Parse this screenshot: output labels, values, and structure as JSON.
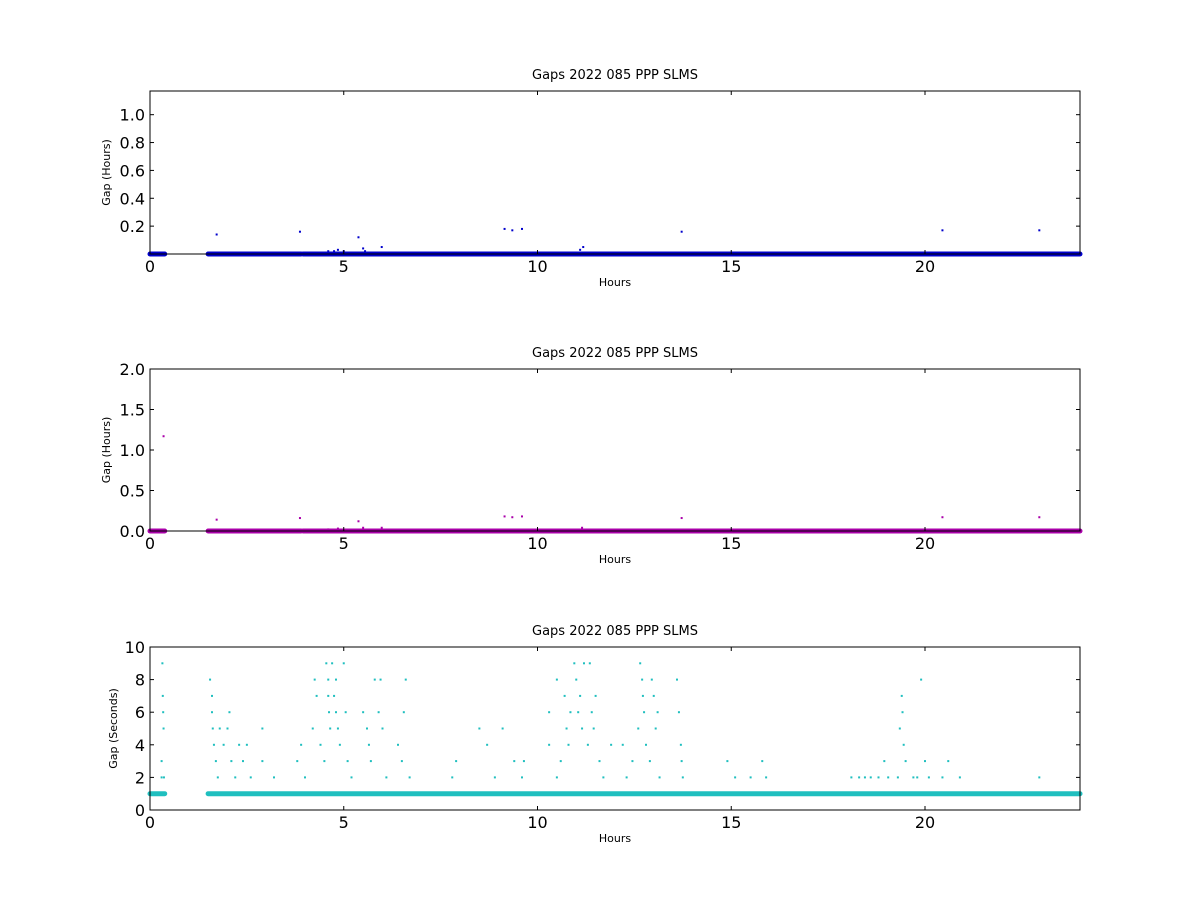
{
  "chart_data": [
    {
      "type": "scatter",
      "title": "Gaps 2022 085 PPP  SLMS",
      "xlabel": "Hours",
      "ylabel": "Gap (Hours)",
      "xlim": [
        0,
        24
      ],
      "ylim": [
        0,
        1.17
      ],
      "xticks": [
        0,
        5,
        10,
        15,
        20
      ],
      "yticks": [
        0.2,
        0.4,
        0.6,
        0.8,
        1.0
      ],
      "xtick_labels": [
        "0",
        "5",
        "10",
        "15",
        "20"
      ],
      "ytick_labels": [
        "0.2",
        "0.4",
        "0.6",
        "0.8",
        "1.0"
      ],
      "color": "#0000cc",
      "grid": false,
      "baseline": {
        "value": 0.0,
        "segments": [
          [
            0.0,
            0.38
          ],
          [
            1.5,
            3.9
          ],
          [
            3.95,
            24.0
          ]
        ]
      },
      "points": [
        {
          "x": 1.72,
          "y": 0.14
        },
        {
          "x": 3.87,
          "y": 0.16
        },
        {
          "x": 4.6,
          "y": 0.02
        },
        {
          "x": 4.75,
          "y": 0.02
        },
        {
          "x": 4.85,
          "y": 0.03
        },
        {
          "x": 5.0,
          "y": 0.02
        },
        {
          "x": 5.38,
          "y": 0.12
        },
        {
          "x": 5.5,
          "y": 0.04
        },
        {
          "x": 5.55,
          "y": 0.02
        },
        {
          "x": 5.98,
          "y": 0.05
        },
        {
          "x": 9.15,
          "y": 0.18
        },
        {
          "x": 9.35,
          "y": 0.17
        },
        {
          "x": 9.6,
          "y": 0.18
        },
        {
          "x": 11.1,
          "y": 0.03
        },
        {
          "x": 11.18,
          "y": 0.05
        },
        {
          "x": 13.72,
          "y": 0.16
        },
        {
          "x": 20.45,
          "y": 0.17
        },
        {
          "x": 22.95,
          "y": 0.17
        }
      ]
    },
    {
      "type": "scatter",
      "title": "Gaps 2022 085 PPP  SLMS",
      "xlabel": "Hours",
      "ylabel": "Gap (Hours)",
      "xlim": [
        0,
        24
      ],
      "ylim": [
        0,
        2.0
      ],
      "xticks": [
        0,
        5,
        10,
        15,
        20
      ],
      "yticks": [
        0.0,
        0.5,
        1.0,
        1.5,
        2.0
      ],
      "xtick_labels": [
        "0",
        "5",
        "10",
        "15",
        "20"
      ],
      "ytick_labels": [
        "0.0",
        "0.5",
        "1.0",
        "1.5",
        "2.0"
      ],
      "color": "#aa00aa",
      "grid": false,
      "baseline": {
        "value": 0.0,
        "segments": [
          [
            0.0,
            0.38
          ],
          [
            1.5,
            3.9
          ],
          [
            3.95,
            24.0
          ]
        ]
      },
      "points": [
        {
          "x": 0.35,
          "y": 1.17
        },
        {
          "x": 1.72,
          "y": 0.14
        },
        {
          "x": 3.87,
          "y": 0.16
        },
        {
          "x": 4.6,
          "y": 0.02
        },
        {
          "x": 4.85,
          "y": 0.03
        },
        {
          "x": 5.38,
          "y": 0.12
        },
        {
          "x": 5.5,
          "y": 0.04
        },
        {
          "x": 5.98,
          "y": 0.04
        },
        {
          "x": 9.15,
          "y": 0.18
        },
        {
          "x": 9.35,
          "y": 0.17
        },
        {
          "x": 9.6,
          "y": 0.18
        },
        {
          "x": 11.15,
          "y": 0.04
        },
        {
          "x": 13.72,
          "y": 0.16
        },
        {
          "x": 20.45,
          "y": 0.17
        },
        {
          "x": 22.95,
          "y": 0.17
        }
      ]
    },
    {
      "type": "scatter",
      "title": "Gaps 2022 085 PPP  SLMS",
      "xlabel": "Hours",
      "ylabel": "Gap (Seconds)",
      "xlim": [
        0,
        24
      ],
      "ylim": [
        0,
        10
      ],
      "xticks": [
        0,
        5,
        10,
        15,
        20
      ],
      "yticks": [
        0,
        2,
        4,
        6,
        8,
        10
      ],
      "xtick_labels": [
        "0",
        "5",
        "10",
        "15",
        "20"
      ],
      "ytick_labels": [
        "0",
        "2",
        "4",
        "6",
        "8",
        "10"
      ],
      "color": "#1fbfbf",
      "grid": false,
      "baseline": {
        "value": 1,
        "segments": [
          [
            0.0,
            0.38
          ],
          [
            1.5,
            24.0
          ]
        ]
      },
      "points": [
        {
          "x": 0.3,
          "y": 2
        },
        {
          "x": 0.3,
          "y": 3
        },
        {
          "x": 0.32,
          "y": 9
        },
        {
          "x": 0.33,
          "y": 7
        },
        {
          "x": 0.34,
          "y": 6
        },
        {
          "x": 0.35,
          "y": 5
        },
        {
          "x": 0.36,
          "y": 2
        },
        {
          "x": 1.55,
          "y": 8
        },
        {
          "x": 1.6,
          "y": 7
        },
        {
          "x": 1.6,
          "y": 6
        },
        {
          "x": 1.62,
          "y": 5
        },
        {
          "x": 1.65,
          "y": 4
        },
        {
          "x": 1.7,
          "y": 3
        },
        {
          "x": 1.75,
          "y": 2
        },
        {
          "x": 1.8,
          "y": 5
        },
        {
          "x": 1.9,
          "y": 4
        },
        {
          "x": 2.0,
          "y": 5
        },
        {
          "x": 2.05,
          "y": 6
        },
        {
          "x": 2.1,
          "y": 3
        },
        {
          "x": 2.2,
          "y": 2
        },
        {
          "x": 2.3,
          "y": 4
        },
        {
          "x": 2.4,
          "y": 3
        },
        {
          "x": 2.5,
          "y": 4
        },
        {
          "x": 2.6,
          "y": 2
        },
        {
          "x": 2.9,
          "y": 5
        },
        {
          "x": 2.9,
          "y": 3
        },
        {
          "x": 3.2,
          "y": 2
        },
        {
          "x": 3.8,
          "y": 3
        },
        {
          "x": 3.9,
          "y": 4
        },
        {
          "x": 4.0,
          "y": 2
        },
        {
          "x": 4.2,
          "y": 5
        },
        {
          "x": 4.25,
          "y": 8
        },
        {
          "x": 4.3,
          "y": 7
        },
        {
          "x": 4.4,
          "y": 4
        },
        {
          "x": 4.5,
          "y": 3
        },
        {
          "x": 4.55,
          "y": 9
        },
        {
          "x": 4.6,
          "y": 8
        },
        {
          "x": 4.6,
          "y": 7
        },
        {
          "x": 4.62,
          "y": 6
        },
        {
          "x": 4.65,
          "y": 5
        },
        {
          "x": 4.7,
          "y": 9
        },
        {
          "x": 4.75,
          "y": 7
        },
        {
          "x": 4.8,
          "y": 8
        },
        {
          "x": 4.8,
          "y": 6
        },
        {
          "x": 4.85,
          "y": 5
        },
        {
          "x": 4.9,
          "y": 4
        },
        {
          "x": 5.0,
          "y": 9
        },
        {
          "x": 5.05,
          "y": 6
        },
        {
          "x": 5.1,
          "y": 3
        },
        {
          "x": 5.2,
          "y": 2
        },
        {
          "x": 5.5,
          "y": 6
        },
        {
          "x": 5.6,
          "y": 5
        },
        {
          "x": 5.65,
          "y": 4
        },
        {
          "x": 5.7,
          "y": 3
        },
        {
          "x": 5.8,
          "y": 8
        },
        {
          "x": 5.9,
          "y": 6
        },
        {
          "x": 5.95,
          "y": 8
        },
        {
          "x": 6.0,
          "y": 5
        },
        {
          "x": 6.1,
          "y": 2
        },
        {
          "x": 6.4,
          "y": 4
        },
        {
          "x": 6.5,
          "y": 3
        },
        {
          "x": 6.55,
          "y": 6
        },
        {
          "x": 6.6,
          "y": 8
        },
        {
          "x": 6.7,
          "y": 2
        },
        {
          "x": 7.8,
          "y": 2
        },
        {
          "x": 7.9,
          "y": 3
        },
        {
          "x": 8.5,
          "y": 5
        },
        {
          "x": 8.7,
          "y": 4
        },
        {
          "x": 8.9,
          "y": 2
        },
        {
          "x": 9.1,
          "y": 5
        },
        {
          "x": 9.4,
          "y": 3
        },
        {
          "x": 9.6,
          "y": 2
        },
        {
          "x": 9.65,
          "y": 3
        },
        {
          "x": 10.3,
          "y": 6
        },
        {
          "x": 10.3,
          "y": 4
        },
        {
          "x": 10.5,
          "y": 2
        },
        {
          "x": 10.5,
          "y": 8
        },
        {
          "x": 10.6,
          "y": 3
        },
        {
          "x": 10.7,
          "y": 7
        },
        {
          "x": 10.75,
          "y": 5
        },
        {
          "x": 10.8,
          "y": 4
        },
        {
          "x": 10.85,
          "y": 6
        },
        {
          "x": 10.95,
          "y": 9
        },
        {
          "x": 11.0,
          "y": 8
        },
        {
          "x": 11.05,
          "y": 6
        },
        {
          "x": 11.1,
          "y": 7
        },
        {
          "x": 11.15,
          "y": 5
        },
        {
          "x": 11.2,
          "y": 9
        },
        {
          "x": 11.3,
          "y": 4
        },
        {
          "x": 11.35,
          "y": 9
        },
        {
          "x": 11.4,
          "y": 6
        },
        {
          "x": 11.45,
          "y": 5
        },
        {
          "x": 11.5,
          "y": 7
        },
        {
          "x": 11.6,
          "y": 3
        },
        {
          "x": 11.7,
          "y": 2
        },
        {
          "x": 11.9,
          "y": 4
        },
        {
          "x": 12.2,
          "y": 4
        },
        {
          "x": 12.3,
          "y": 2
        },
        {
          "x": 12.45,
          "y": 3
        },
        {
          "x": 12.6,
          "y": 5
        },
        {
          "x": 12.65,
          "y": 9
        },
        {
          "x": 12.7,
          "y": 8
        },
        {
          "x": 12.72,
          "y": 7
        },
        {
          "x": 12.75,
          "y": 6
        },
        {
          "x": 12.8,
          "y": 4
        },
        {
          "x": 12.9,
          "y": 3
        },
        {
          "x": 12.95,
          "y": 8
        },
        {
          "x": 13.0,
          "y": 7
        },
        {
          "x": 13.05,
          "y": 5
        },
        {
          "x": 13.1,
          "y": 6
        },
        {
          "x": 13.15,
          "y": 2
        },
        {
          "x": 13.6,
          "y": 8
        },
        {
          "x": 13.65,
          "y": 6
        },
        {
          "x": 13.7,
          "y": 4
        },
        {
          "x": 13.72,
          "y": 3
        },
        {
          "x": 13.75,
          "y": 2
        },
        {
          "x": 14.9,
          "y": 3
        },
        {
          "x": 15.1,
          "y": 2
        },
        {
          "x": 15.5,
          "y": 2
        },
        {
          "x": 15.8,
          "y": 3
        },
        {
          "x": 15.9,
          "y": 2
        },
        {
          "x": 18.1,
          "y": 2
        },
        {
          "x": 18.3,
          "y": 2
        },
        {
          "x": 18.45,
          "y": 2
        },
        {
          "x": 18.6,
          "y": 2
        },
        {
          "x": 18.8,
          "y": 2
        },
        {
          "x": 18.95,
          "y": 3
        },
        {
          "x": 19.05,
          "y": 2
        },
        {
          "x": 19.3,
          "y": 2
        },
        {
          "x": 19.35,
          "y": 5
        },
        {
          "x": 19.4,
          "y": 7
        },
        {
          "x": 19.42,
          "y": 6
        },
        {
          "x": 19.45,
          "y": 4
        },
        {
          "x": 19.5,
          "y": 3
        },
        {
          "x": 19.7,
          "y": 2
        },
        {
          "x": 19.8,
          "y": 2
        },
        {
          "x": 19.9,
          "y": 8
        },
        {
          "x": 20.0,
          "y": 3
        },
        {
          "x": 20.1,
          "y": 2
        },
        {
          "x": 20.45,
          "y": 2
        },
        {
          "x": 20.6,
          "y": 3
        },
        {
          "x": 20.9,
          "y": 2
        },
        {
          "x": 22.95,
          "y": 2
        }
      ]
    }
  ]
}
